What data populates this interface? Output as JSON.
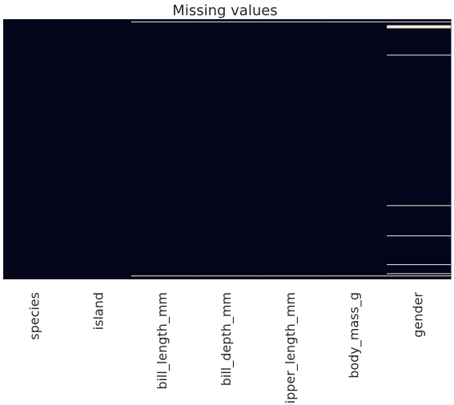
{
  "chart_data": {
    "type": "heatmap",
    "title": "Missing values",
    "xlabel": "",
    "ylabel": "",
    "columns": [
      "species",
      "island",
      "bill_length_mm",
      "bill_depth_mm",
      "flipper_length_mm",
      "body_mass_g",
      "gender"
    ],
    "row_count": 344,
    "missing_rows": {
      "species": [],
      "island": [],
      "bill_length_mm": [
        3,
        339
      ],
      "bill_depth_mm": [
        3,
        339
      ],
      "flipper_length_mm": [
        3,
        339
      ],
      "body_mass_g": [
        3,
        339
      ],
      "gender": [
        3,
        8,
        9,
        10,
        11,
        47,
        246,
        286,
        324,
        336,
        339
      ]
    },
    "colors": {
      "present": "#03051a",
      "missing": "#faebdd"
    },
    "grid": false,
    "legend": "none"
  }
}
